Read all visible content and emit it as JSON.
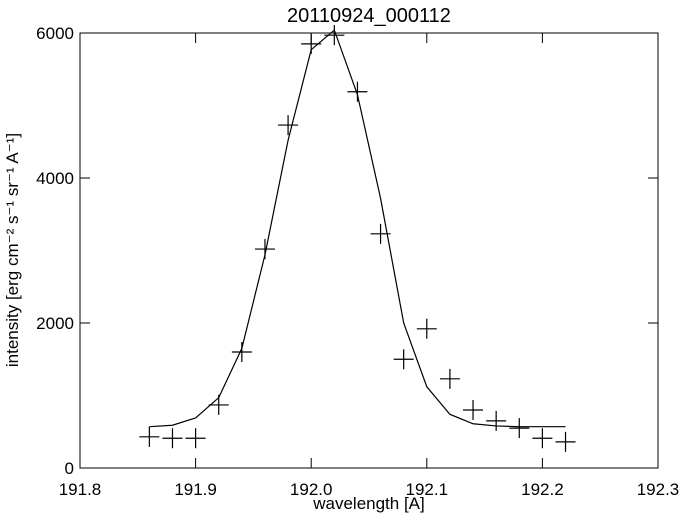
{
  "chart_data": {
    "type": "scatter",
    "title": "20110924_000112",
    "xlabel": "wavelength [A]",
    "ylabel": "intensity [erg cm⁻² s⁻¹ sr⁻¹ A⁻¹]",
    "x": [
      191.86,
      191.88,
      191.9,
      191.92,
      191.94,
      191.96,
      191.98,
      192.0,
      192.02,
      192.04,
      192.06,
      192.08,
      192.1,
      192.12,
      192.14,
      192.16,
      192.18,
      192.2,
      192.22
    ],
    "series": [
      {
        "type": "scatter",
        "color": "#000000",
        "values": [
          430,
          410,
          410,
          870,
          1600,
          3020,
          4730,
          5850,
          5970,
          5190,
          3230,
          1500,
          1920,
          1230,
          800,
          650,
          550,
          410,
          360
        ]
      },
      {
        "type": "line",
        "color": "#000000",
        "values": [
          570,
          590,
          690,
          970,
          1650,
          2940,
          4520,
          5770,
          6040,
          5150,
          3720,
          2000,
          1120,
          740,
          610,
          580,
          570,
          570,
          570
        ]
      }
    ],
    "xlim": [
      191.8,
      192.3
    ],
    "xticks": [
      191.8,
      191.9,
      {
        "value": 192,
        "label": "192.0"
      },
      192.1,
      192.2,
      192.3
    ],
    "ylim": [
      0,
      6000
    ],
    "yticks": [
      0,
      2000,
      4000,
      6000
    ]
  }
}
